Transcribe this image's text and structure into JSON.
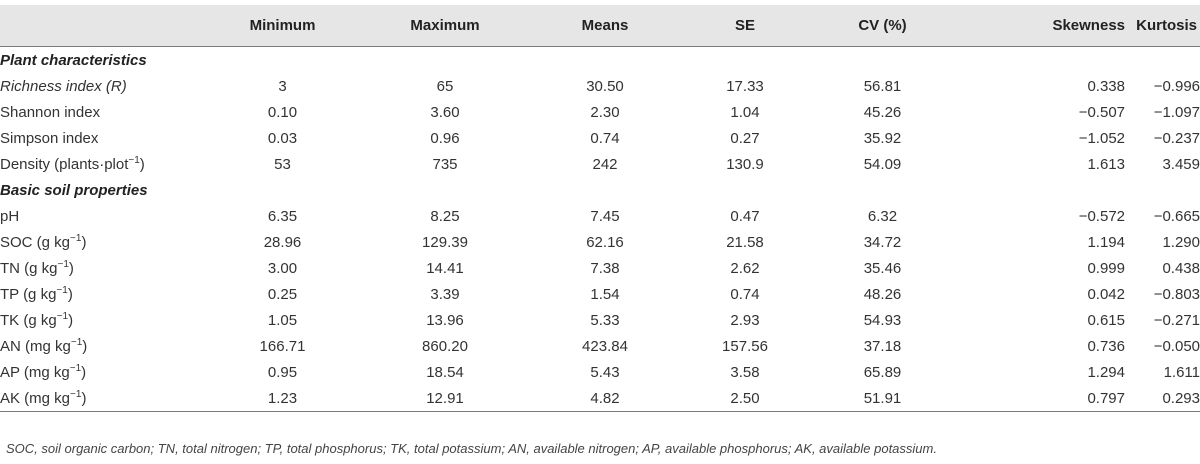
{
  "table": {
    "headers": [
      "",
      "Minimum",
      "Maximum",
      "Means",
      "SE",
      "CV (%)",
      "Skewness",
      "Kurtosis"
    ],
    "sections": [
      {
        "title": "Plant characteristics",
        "rows": [
          {
            "label": "Richness index (",
            "label_italic": "R",
            "label_tail": ")",
            "values": [
              "3",
              "65",
              "30.50",
              "17.33",
              "56.81",
              "0.338",
              "−0.996"
            ]
          },
          {
            "label": "Shannon index",
            "values": [
              "0.10",
              "3.60",
              "2.30",
              "1.04",
              "45.26",
              "−0.507",
              "−1.097"
            ]
          },
          {
            "label": "Simpson index",
            "values": [
              "0.03",
              "0.96",
              "0.74",
              "0.27",
              "35.92",
              "−1.052",
              "−0.237"
            ]
          },
          {
            "label": "Density (plants·plot",
            "sup": "−1",
            "label_tail": ")",
            "values": [
              "53",
              "735",
              "242",
              "130.9",
              "54.09",
              "1.613",
              "3.459"
            ]
          }
        ]
      },
      {
        "title": "Basic soil properties",
        "rows": [
          {
            "label": "pH",
            "values": [
              "6.35",
              "8.25",
              "7.45",
              "0.47",
              "6.32",
              "−0.572",
              "−0.665"
            ]
          },
          {
            "label": "SOC (g kg",
            "sup": "−1",
            "label_tail": ")",
            "values": [
              "28.96",
              "129.39",
              "62.16",
              "21.58",
              "34.72",
              "1.194",
              "1.290"
            ]
          },
          {
            "label": "TN (g kg",
            "sup": "−1",
            "label_tail": ")",
            "values": [
              "3.00",
              "14.41",
              "7.38",
              "2.62",
              "35.46",
              "0.999",
              "0.438"
            ]
          },
          {
            "label": "TP (g kg",
            "sup": "−1",
            "label_tail": ")",
            "values": [
              "0.25",
              "3.39",
              "1.54",
              "0.74",
              "48.26",
              "0.042",
              "−0.803"
            ]
          },
          {
            "label": "TK (g kg",
            "sup": "−1",
            "label_tail": ")",
            "values": [
              "1.05",
              "13.96",
              "5.33",
              "2.93",
              "54.93",
              "0.615",
              "−0.271"
            ]
          },
          {
            "label": "AN (mg kg",
            "sup": "−1",
            "label_tail": ")",
            "values": [
              "166.71",
              "860.20",
              "423.84",
              "157.56",
              "37.18",
              "0.736",
              "−0.050"
            ]
          },
          {
            "label": "AP (mg kg",
            "sup": "−1",
            "label_tail": ")",
            "values": [
              "0.95",
              "18.54",
              "5.43",
              "3.58",
              "65.89",
              "1.294",
              "1.611"
            ]
          },
          {
            "label": "AK (mg kg",
            "sup": "−1",
            "label_tail": ")",
            "values": [
              "1.23",
              "12.91",
              "4.82",
              "2.50",
              "51.91",
              "0.797",
              "0.293"
            ]
          }
        ]
      }
    ],
    "footnote": "SOC, soil organic carbon; TN, total nitrogen; TP, total phosphorus; TK, total potassium; AN, available nitrogen; AP, available phosphorus; AK, available potassium."
  }
}
